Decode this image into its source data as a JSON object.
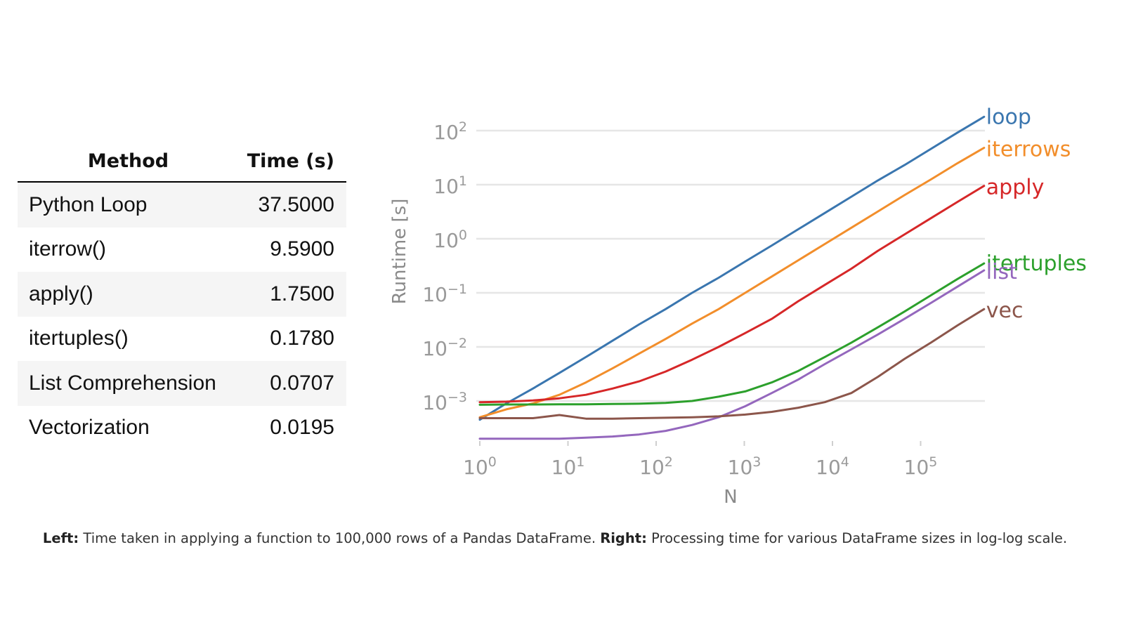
{
  "table": {
    "headers": {
      "method": "Method",
      "time": "Time (s)"
    },
    "rows": [
      {
        "method": "Python Loop",
        "time": "37.5000"
      },
      {
        "method": "iterrow()",
        "time": "9.5900"
      },
      {
        "method": "apply()",
        "time": "1.7500"
      },
      {
        "method": "itertuples()",
        "time": "0.1780"
      },
      {
        "method": "List Comprehension",
        "time": "0.0707"
      },
      {
        "method": "Vectorization",
        "time": "0.0195"
      }
    ]
  },
  "chart_data": {
    "type": "line",
    "title": "",
    "xlabel": "N",
    "ylabel": "Runtime [s]",
    "xscale": "log",
    "yscale": "log",
    "xlim": [
      1,
      500000
    ],
    "ylim": [
      0.0002,
      300
    ],
    "grid": "horizontal",
    "legend": "inline labels at line ends",
    "x_ticks": [
      {
        "base": "10",
        "exp": "0",
        "value": 1
      },
      {
        "base": "10",
        "exp": "1",
        "value": 10
      },
      {
        "base": "10",
        "exp": "2",
        "value": 100
      },
      {
        "base": "10",
        "exp": "3",
        "value": 1000
      },
      {
        "base": "10",
        "exp": "4",
        "value": 10000
      },
      {
        "base": "10",
        "exp": "5",
        "value": 100000
      }
    ],
    "y_ticks": [
      {
        "base": "10",
        "exp": "2",
        "value": 100
      },
      {
        "base": "10",
        "exp": "1",
        "value": 10
      },
      {
        "base": "10",
        "exp": "0",
        "value": 1
      },
      {
        "base": "10",
        "exp": "−1",
        "value": 0.1
      },
      {
        "base": "10",
        "exp": "−2",
        "value": 0.01
      },
      {
        "base": "10",
        "exp": "−3",
        "value": 0.001
      }
    ],
    "x": [
      1,
      2,
      4,
      8,
      16,
      32,
      64,
      128,
      256,
      512,
      1024,
      2048,
      4096,
      8192,
      16384,
      32768,
      65536,
      131072,
      262144,
      524288
    ],
    "series": [
      {
        "name": "loop",
        "color": "#3a76af",
        "values": [
          0.00045,
          0.0009,
          0.0017,
          0.0033,
          0.0065,
          0.013,
          0.026,
          0.05,
          0.1,
          0.19,
          0.38,
          0.75,
          1.5,
          3.0,
          6.0,
          12,
          23,
          46,
          92,
          180
        ]
      },
      {
        "name": "iterrows",
        "color": "#f28e2b",
        "values": [
          0.0005,
          0.0007,
          0.0009,
          0.0013,
          0.0022,
          0.004,
          0.0075,
          0.014,
          0.027,
          0.05,
          0.1,
          0.2,
          0.4,
          0.8,
          1.6,
          3.2,
          6.4,
          12.5,
          25,
          48
        ]
      },
      {
        "name": "apply",
        "color": "#d62728",
        "values": [
          0.00095,
          0.00097,
          0.00102,
          0.00112,
          0.0013,
          0.0017,
          0.0023,
          0.0035,
          0.0058,
          0.01,
          0.018,
          0.033,
          0.07,
          0.14,
          0.28,
          0.6,
          1.2,
          2.4,
          4.8,
          9.5
        ]
      },
      {
        "name": "itertuples",
        "color": "#2ca02c",
        "values": [
          0.00085,
          0.00086,
          0.00086,
          0.00087,
          0.00087,
          0.00088,
          0.00089,
          0.00092,
          0.001,
          0.0012,
          0.0015,
          0.0022,
          0.0036,
          0.0065,
          0.012,
          0.023,
          0.045,
          0.09,
          0.18,
          0.35
        ]
      },
      {
        "name": "list",
        "color": "#9467bd",
        "values": [
          0.0002,
          0.0002,
          0.0002,
          0.0002,
          0.00021,
          0.00022,
          0.00024,
          0.00028,
          0.00036,
          0.0005,
          0.0008,
          0.0014,
          0.0025,
          0.0048,
          0.009,
          0.017,
          0.033,
          0.065,
          0.13,
          0.26
        ]
      },
      {
        "name": "vec",
        "color": "#8c564b",
        "values": [
          0.00048,
          0.00048,
          0.00048,
          0.00055,
          0.00047,
          0.00047,
          0.00048,
          0.00049,
          0.0005,
          0.00052,
          0.00056,
          0.00063,
          0.00075,
          0.00095,
          0.0014,
          0.0028,
          0.006,
          0.012,
          0.025,
          0.05
        ]
      }
    ]
  },
  "caption": {
    "left_label": "Left:",
    "left_text": "Time taken in applying a function to 100,000 rows of a Pandas DataFrame.",
    "right_label": "Right:",
    "right_text": "Processing time for various DataFrame sizes in log-log scale."
  }
}
